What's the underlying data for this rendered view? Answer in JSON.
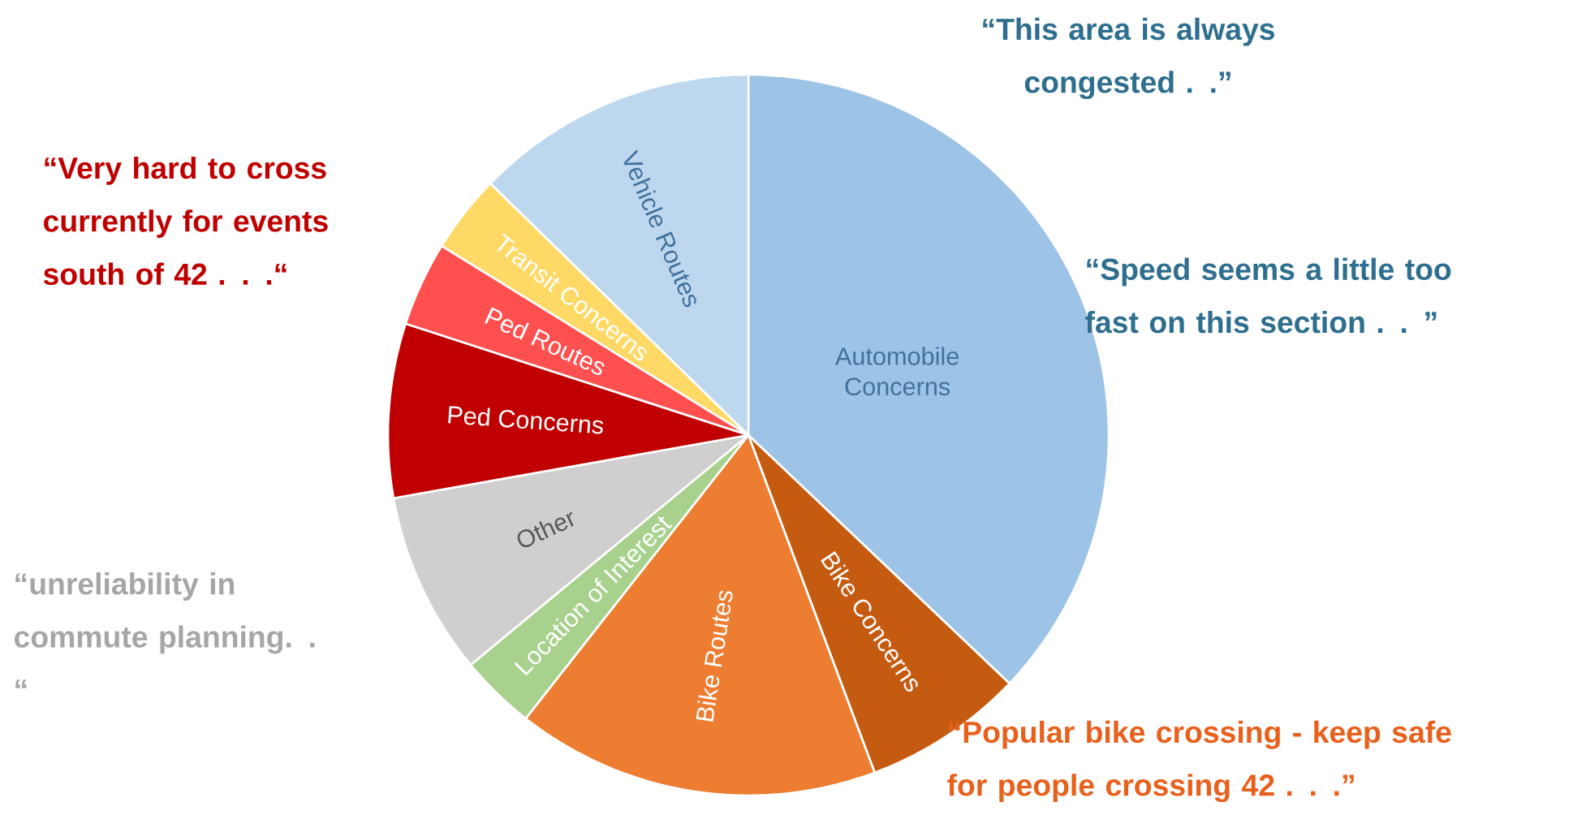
{
  "chart_data": {
    "type": "pie",
    "categories": [
      "Automobile Concerns",
      "Bike Concerns",
      "Bike Routes",
      "Location of Interest",
      "Other",
      "Ped Concerns",
      "Ped Routes",
      "Transit Concerns",
      "Vehicle Routes"
    ],
    "values": [
      37.1,
      7.2,
      16.3,
      3.4,
      8.2,
      7.8,
      3.8,
      3.5,
      12.7
    ],
    "colors": [
      "#9dc3e6",
      "#c55a11",
      "#ed7d31",
      "#a9d18e",
      "#d0cece",
      "#c00000",
      "#ff5050",
      "#ffd966",
      "#bdd7ee"
    ],
    "annotations": [
      "“This area is always congested . .”",
      "“Speed seems a little too fast on this section . . ”",
      "“Very hard to cross currently for events south of 42 . . .“",
      "“unreliability in commute planning. . “",
      "“Popular bike crossing - keep safe for people crossing 42 . . .”"
    ]
  }
}
